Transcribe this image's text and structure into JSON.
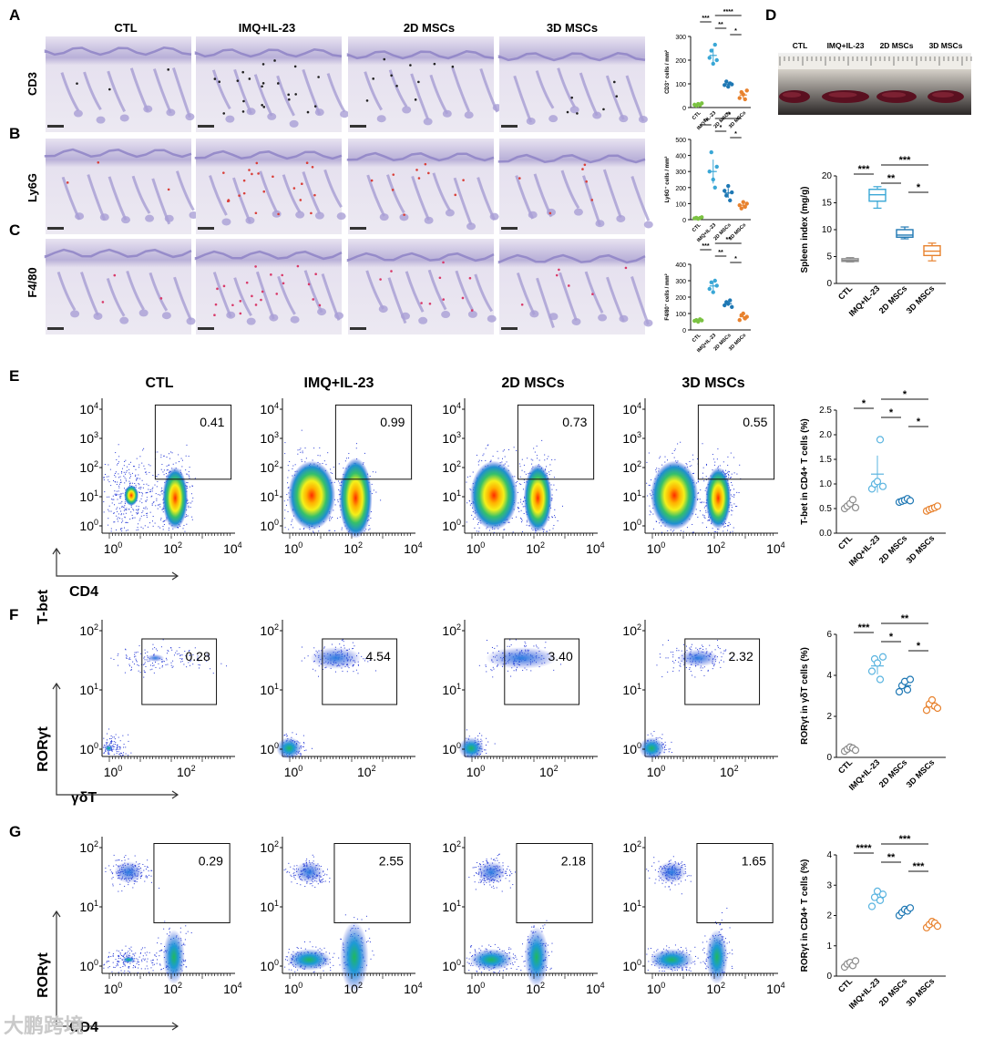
{
  "panels": {
    "A": "A",
    "B": "B",
    "C": "C",
    "D": "D",
    "E": "E",
    "F": "F",
    "G": "G"
  },
  "groups": [
    "CTL",
    "IMQ+IL-23",
    "2D MSCs",
    "3D MSCs"
  ],
  "histology_rows": [
    "CD3",
    "Ly6G",
    "F4/80"
  ],
  "flow": {
    "E": {
      "y_marker": "T-bet",
      "x_marker": "CD4",
      "gate_values": [
        "0.41",
        "0.99",
        "0.73",
        "0.55"
      ],
      "y_ticks": [
        "10^0",
        "10^1",
        "10^2",
        "10^3",
        "10^4"
      ],
      "x_ticks": [
        "10^0",
        "10^2",
        "10^4"
      ]
    },
    "F": {
      "y_marker": "RORγt",
      "x_marker": "γδT",
      "gate_values": [
        "0.28",
        "4.54",
        "3.40",
        "2.32"
      ],
      "y_ticks": [
        "10^0",
        "10^1",
        "10^2"
      ],
      "x_ticks": [
        "10^0",
        "10^2"
      ]
    },
    "G": {
      "y_marker": "RORγt",
      "x_marker": "CD4",
      "gate_values": [
        "0.29",
        "2.55",
        "2.18",
        "1.65"
      ],
      "y_ticks": [
        "10^0",
        "10^1",
        "10^2"
      ],
      "x_ticks": [
        "10^0",
        "10^2",
        "10^4"
      ]
    }
  },
  "spleen_photo": {
    "labels": [
      "CTL",
      "IMQ+IL-23",
      "2D MSCs",
      "3D MSCs"
    ]
  },
  "watermark": "大鹏跨境",
  "chart_data": [
    {
      "id": "A_right",
      "type": "scatter",
      "ylabel": "CD3⁺ cells / mm²",
      "ylim": [
        0,
        300
      ],
      "yticks": [
        0,
        100,
        200,
        300
      ],
      "categories": [
        "CTL",
        "IMQ+IL-23",
        "2D MSCs",
        "3D MSCs"
      ],
      "values": [
        [
          12,
          8,
          15,
          10,
          18
        ],
        [
          210,
          240,
          185,
          265,
          200
        ],
        [
          95,
          110,
          88,
          102,
          98
        ],
        [
          40,
          65,
          55,
          35,
          72
        ]
      ],
      "means": [
        13,
        220,
        99,
        53
      ],
      "sig": [
        {
          "a": 0,
          "b": 1,
          "label": "***"
        },
        {
          "a": 1,
          "b": 2,
          "label": "**"
        },
        {
          "a": 1,
          "b": 3,
          "label": "****"
        },
        {
          "a": 2,
          "b": 3,
          "label": "*"
        }
      ],
      "colors": [
        "#7bc242",
        "#3aa7d6",
        "#1f78b4",
        "#e8822e"
      ]
    },
    {
      "id": "B_right",
      "type": "scatter",
      "ylabel": "Ly6G⁺ cells / mm²",
      "ylim": [
        0,
        500
      ],
      "yticks": [
        0,
        100,
        200,
        300,
        400,
        500
      ],
      "categories": [
        "CTL",
        "IMQ+IL-23",
        "2D MSCs",
        "3D MSCs"
      ],
      "values": [
        [
          8,
          12,
          5,
          10,
          15
        ],
        [
          300,
          420,
          250,
          200,
          330
        ],
        [
          180,
          150,
          210,
          120,
          170
        ],
        [
          90,
          70,
          110,
          80,
          100
        ]
      ],
      "means": [
        10,
        300,
        166,
        90
      ],
      "sig": [
        {
          "a": 0,
          "b": 1,
          "label": "**"
        },
        {
          "a": 1,
          "b": 2,
          "label": "*"
        },
        {
          "a": 1,
          "b": 3,
          "label": "**"
        },
        {
          "a": 2,
          "b": 3,
          "label": "*"
        }
      ],
      "colors": [
        "#7bc242",
        "#3aa7d6",
        "#1f78b4",
        "#e8822e"
      ]
    },
    {
      "id": "C_right",
      "type": "scatter",
      "ylabel": "F4/80⁺ cells / mm²",
      "ylim": [
        0,
        400
      ],
      "yticks": [
        0,
        100,
        200,
        300,
        400
      ],
      "categories": [
        "CTL",
        "IMQ+IL-23",
        "2D MSCs",
        "3D MSCs"
      ],
      "values": [
        [
          55,
          60,
          50,
          65,
          58
        ],
        [
          250,
          290,
          230,
          300,
          270
        ],
        [
          150,
          170,
          160,
          180,
          140
        ],
        [
          60,
          90,
          100,
          70,
          80
        ]
      ],
      "means": [
        58,
        268,
        160,
        80
      ],
      "sig": [
        {
          "a": 0,
          "b": 1,
          "label": "***"
        },
        {
          "a": 1,
          "b": 2,
          "label": "**"
        },
        {
          "a": 1,
          "b": 3,
          "label": "**"
        },
        {
          "a": 2,
          "b": 3,
          "label": "*"
        }
      ],
      "colors": [
        "#7bc242",
        "#3aa7d6",
        "#1f78b4",
        "#e8822e"
      ]
    },
    {
      "id": "D_box",
      "type": "box",
      "ylabel": "Spleen index (mg/g)",
      "ylim": [
        0,
        20
      ],
      "yticks": [
        0,
        5,
        10,
        15,
        20
      ],
      "categories": [
        "CTL",
        "IMQ+IL-23",
        "2D MSCs",
        "3D MSCs"
      ],
      "boxes": [
        {
          "min": 4.0,
          "q1": 4.1,
          "median": 4.3,
          "q3": 4.6,
          "max": 4.8
        },
        {
          "min": 14.0,
          "q1": 15.3,
          "median": 16.5,
          "q3": 17.5,
          "max": 18.0
        },
        {
          "min": 8.3,
          "q1": 8.6,
          "median": 9.0,
          "q3": 10.0,
          "max": 10.5
        },
        {
          "min": 4.2,
          "q1": 5.2,
          "median": 6.0,
          "q3": 7.0,
          "max": 7.5
        }
      ],
      "sig": [
        {
          "a": 0,
          "b": 1,
          "label": "***"
        },
        {
          "a": 1,
          "b": 2,
          "label": "**"
        },
        {
          "a": 1,
          "b": 3,
          "label": "***"
        },
        {
          "a": 2,
          "b": 3,
          "label": "*"
        }
      ],
      "colors": [
        "#8c8c8c",
        "#3aa7d6",
        "#1f78b4",
        "#e8822e"
      ]
    },
    {
      "id": "E_right",
      "type": "scatter",
      "ylabel": "T-bet in CD4+ T cells (%)",
      "ylim": [
        0,
        2.5
      ],
      "yticks": [
        0.0,
        0.5,
        1.0,
        1.5,
        2.0,
        2.5
      ],
      "categories": [
        "CTL",
        "IMQ+IL-23",
        "2D MSCs",
        "3D MSCs"
      ],
      "values": [
        [
          0.5,
          0.55,
          0.6,
          0.68,
          0.52
        ],
        [
          0.9,
          1.0,
          1.05,
          1.9,
          0.95
        ],
        [
          0.63,
          0.65,
          0.67,
          0.7,
          0.66
        ],
        [
          0.45,
          0.48,
          0.5,
          0.52,
          0.55
        ]
      ],
      "means": [
        0.57,
        1.2,
        0.66,
        0.5
      ],
      "sig": [
        {
          "a": 0,
          "b": 1,
          "label": "*"
        },
        {
          "a": 1,
          "b": 2,
          "label": "*"
        },
        {
          "a": 1,
          "b": 3,
          "label": "*"
        },
        {
          "a": 2,
          "b": 3,
          "label": "*"
        }
      ],
      "colors": [
        "#8c8c8c",
        "#5ab4e0",
        "#1f78b4",
        "#e8822e"
      ]
    },
    {
      "id": "F_right",
      "type": "scatter",
      "ylabel": "RORγt in γδT cells (%)",
      "ylim": [
        0,
        6
      ],
      "yticks": [
        0,
        2,
        4,
        6
      ],
      "categories": [
        "CTL",
        "IMQ+IL-23",
        "2D MSCs",
        "3D MSCs"
      ],
      "values": [
        [
          0.3,
          0.4,
          0.5,
          0.45,
          0.35
        ],
        [
          4.2,
          4.8,
          4.6,
          3.8,
          4.9
        ],
        [
          3.2,
          3.5,
          3.7,
          3.3,
          3.8
        ],
        [
          2.3,
          2.6,
          2.8,
          2.5,
          2.4
        ]
      ],
      "means": [
        0.4,
        4.46,
        3.5,
        2.52
      ],
      "sig": [
        {
          "a": 0,
          "b": 1,
          "label": "***"
        },
        {
          "a": 1,
          "b": 2,
          "label": "*"
        },
        {
          "a": 1,
          "b": 3,
          "label": "**"
        },
        {
          "a": 2,
          "b": 3,
          "label": "*"
        }
      ],
      "colors": [
        "#8c8c8c",
        "#5ab4e0",
        "#1f78b4",
        "#e8822e"
      ]
    },
    {
      "id": "G_right",
      "type": "scatter",
      "ylabel": "RORγt in CD4+ T cells (%)",
      "ylim": [
        0,
        4
      ],
      "yticks": [
        0,
        1,
        2,
        3,
        4
      ],
      "categories": [
        "CTL",
        "IMQ+IL-23",
        "2D MSCs",
        "3D MSCs"
      ],
      "values": [
        [
          0.3,
          0.4,
          0.45,
          0.35,
          0.5
        ],
        [
          2.3,
          2.6,
          2.8,
          2.5,
          2.7
        ],
        [
          2.0,
          2.1,
          2.2,
          2.15,
          2.25
        ],
        [
          1.6,
          1.7,
          1.8,
          1.75,
          1.65
        ]
      ],
      "means": [
        0.4,
        2.58,
        2.14,
        1.7
      ],
      "sig": [
        {
          "a": 0,
          "b": 1,
          "label": "****"
        },
        {
          "a": 1,
          "b": 2,
          "label": "**"
        },
        {
          "a": 1,
          "b": 3,
          "label": "***"
        },
        {
          "a": 2,
          "b": 3,
          "label": "***"
        }
      ],
      "colors": [
        "#8c8c8c",
        "#5ab4e0",
        "#1f78b4",
        "#e8822e"
      ]
    }
  ]
}
